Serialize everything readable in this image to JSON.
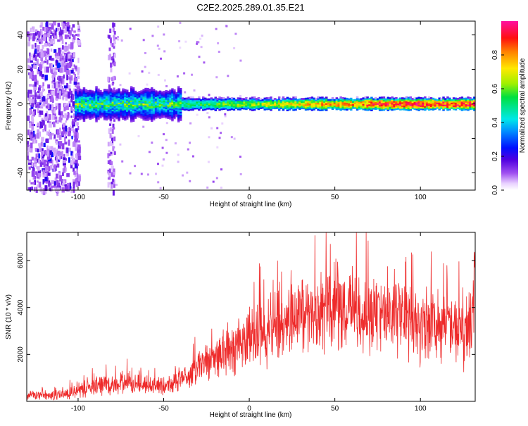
{
  "title": "C2E2.2025.289.01.35.E21",
  "colors": {
    "snr_line": "#ee2a2a",
    "frame": "#000000",
    "background": "#ffffff"
  },
  "chart_data": [
    {
      "type": "heatmap",
      "name": "spectrogram",
      "xlabel": "Height of straight line (km)",
      "ylabel": "Frequency (Hz)",
      "xlim": [
        -130,
        132
      ],
      "ylim": [
        -50,
        48
      ],
      "xticks": [
        -100,
        -50,
        0,
        50,
        100
      ],
      "yticks": [
        -40,
        -20,
        0,
        20,
        40
      ],
      "colorbar": {
        "label": "Normalized spectral amplitude",
        "range": [
          0,
          1
        ],
        "ticks": [
          0.0,
          0.2,
          0.4,
          0.6,
          0.8
        ],
        "colormap": "rainbow (white-violet-blue-cyan-green-yellow-red-magenta)"
      },
      "description_ridge": {
        "center_frequency_hz": 0,
        "x_start_km": -102,
        "broad_region": [
          -102,
          -40
        ],
        "narrow_region": [
          -40,
          132
        ],
        "peak_amplitude": 1.0
      }
    },
    {
      "type": "line",
      "name": "snr",
      "xlabel": "Height of straight line (km)",
      "ylabel": "SNR (10 * v/v)",
      "xlim": [
        -130,
        132
      ],
      "ylim": [
        0,
        7200
      ],
      "xticks": [
        -100,
        -50,
        0,
        50,
        100
      ],
      "yticks": [
        2000,
        4000,
        6000
      ],
      "series": [
        {
          "name": "SNR",
          "x": [
            -130,
            -120,
            -110,
            -100,
            -90,
            -80,
            -70,
            -60,
            -50,
            -40,
            -30,
            -20,
            -10,
            0,
            10,
            20,
            30,
            40,
            50,
            60,
            70,
            80,
            90,
            100,
            110,
            120,
            125,
            130,
            132
          ],
          "values": [
            250,
            250,
            300,
            450,
            650,
            700,
            800,
            700,
            650,
            950,
            1400,
            1900,
            2300,
            2700,
            3000,
            3400,
            3700,
            3800,
            4000,
            3900,
            3750,
            3850,
            3700,
            3300,
            3350,
            3100,
            2700,
            3500,
            5800
          ]
        }
      ]
    }
  ]
}
